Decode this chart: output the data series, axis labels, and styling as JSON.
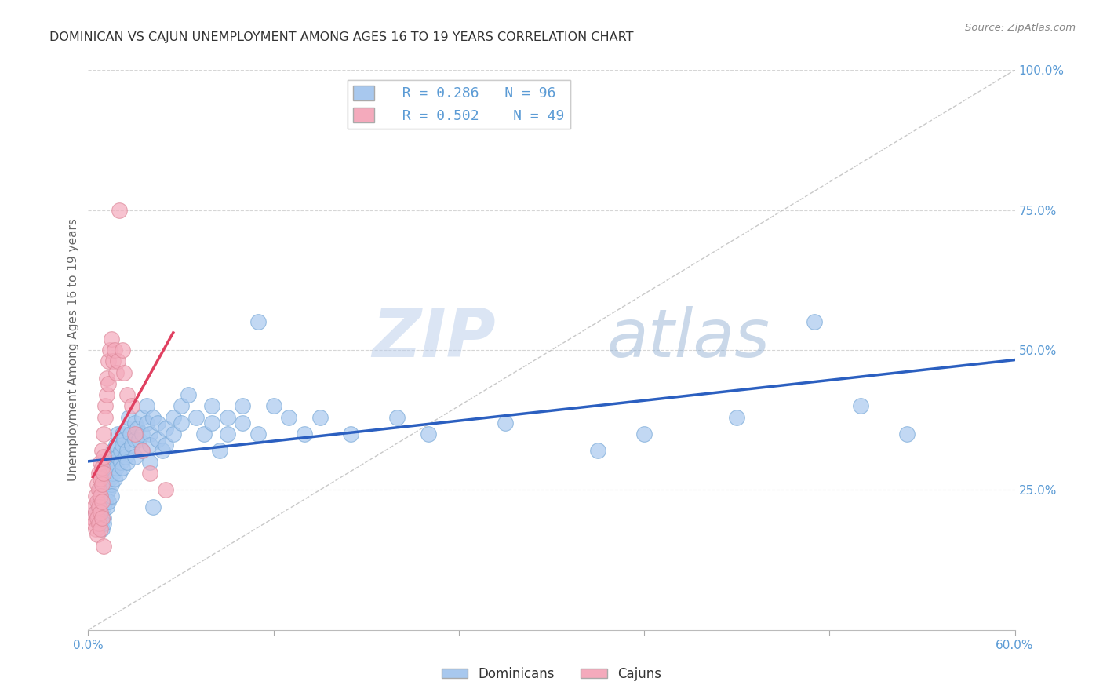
{
  "title": "DOMINICAN VS CAJUN UNEMPLOYMENT AMONG AGES 16 TO 19 YEARS CORRELATION CHART",
  "source": "Source: ZipAtlas.com",
  "ylabel": "Unemployment Among Ages 16 to 19 years",
  "xlim": [
    0.0,
    0.6
  ],
  "ylim": [
    0.0,
    1.0
  ],
  "xticks": [
    0.0,
    0.12,
    0.24,
    0.36,
    0.48,
    0.6
  ],
  "xticklabels": [
    "0.0%",
    "",
    "",
    "",
    "",
    "60.0%"
  ],
  "yticks_right": [
    0.0,
    0.25,
    0.5,
    0.75,
    1.0
  ],
  "yticklabels_right": [
    "",
    "25.0%",
    "50.0%",
    "75.0%",
    "100.0%"
  ],
  "dominican_color": "#A8C8EE",
  "cajun_color": "#F4AABC",
  "dominican_line_color": "#2B5FC0",
  "cajun_line_color": "#E04060",
  "diagonal_color": "#CCCCCC",
  "watermark_zip": "ZIP",
  "watermark_atlas": "atlas",
  "legend_r_dominican": "R = 0.286",
  "legend_n_dominican": "N = 96",
  "legend_r_cajun": "R = 0.502",
  "legend_n_cajun": "N = 49",
  "background_color": "#FFFFFF",
  "grid_color": "#CCCCCC",
  "title_color": "#333333",
  "tick_color": "#5B9BD5",
  "dominican_points": [
    [
      0.005,
      0.21
    ],
    [
      0.007,
      0.23
    ],
    [
      0.007,
      0.19
    ],
    [
      0.008,
      0.22
    ],
    [
      0.008,
      0.25
    ],
    [
      0.009,
      0.2
    ],
    [
      0.009,
      0.18
    ],
    [
      0.01,
      0.24
    ],
    [
      0.01,
      0.22
    ],
    [
      0.01,
      0.2
    ],
    [
      0.01,
      0.19
    ],
    [
      0.011,
      0.27
    ],
    [
      0.011,
      0.23
    ],
    [
      0.012,
      0.26
    ],
    [
      0.012,
      0.24
    ],
    [
      0.012,
      0.22
    ],
    [
      0.013,
      0.28
    ],
    [
      0.013,
      0.25
    ],
    [
      0.013,
      0.23
    ],
    [
      0.014,
      0.3
    ],
    [
      0.014,
      0.27
    ],
    [
      0.015,
      0.29
    ],
    [
      0.015,
      0.26
    ],
    [
      0.015,
      0.24
    ],
    [
      0.016,
      0.32
    ],
    [
      0.016,
      0.28
    ],
    [
      0.017,
      0.3
    ],
    [
      0.017,
      0.27
    ],
    [
      0.018,
      0.33
    ],
    [
      0.018,
      0.29
    ],
    [
      0.019,
      0.35
    ],
    [
      0.019,
      0.31
    ],
    [
      0.02,
      0.28
    ],
    [
      0.021,
      0.32
    ],
    [
      0.021,
      0.3
    ],
    [
      0.022,
      0.35
    ],
    [
      0.022,
      0.33
    ],
    [
      0.022,
      0.29
    ],
    [
      0.023,
      0.34
    ],
    [
      0.024,
      0.31
    ],
    [
      0.025,
      0.36
    ],
    [
      0.025,
      0.32
    ],
    [
      0.025,
      0.3
    ],
    [
      0.026,
      0.38
    ],
    [
      0.027,
      0.35
    ],
    [
      0.028,
      0.33
    ],
    [
      0.03,
      0.37
    ],
    [
      0.03,
      0.34
    ],
    [
      0.03,
      0.31
    ],
    [
      0.032,
      0.36
    ],
    [
      0.033,
      0.34
    ],
    [
      0.035,
      0.38
    ],
    [
      0.035,
      0.35
    ],
    [
      0.035,
      0.32
    ],
    [
      0.038,
      0.4
    ],
    [
      0.038,
      0.37
    ],
    [
      0.04,
      0.35
    ],
    [
      0.04,
      0.33
    ],
    [
      0.04,
      0.3
    ],
    [
      0.042,
      0.38
    ],
    [
      0.042,
      0.22
    ],
    [
      0.045,
      0.37
    ],
    [
      0.045,
      0.34
    ],
    [
      0.048,
      0.32
    ],
    [
      0.05,
      0.36
    ],
    [
      0.05,
      0.33
    ],
    [
      0.055,
      0.38
    ],
    [
      0.055,
      0.35
    ],
    [
      0.06,
      0.4
    ],
    [
      0.06,
      0.37
    ],
    [
      0.065,
      0.42
    ],
    [
      0.07,
      0.38
    ],
    [
      0.075,
      0.35
    ],
    [
      0.08,
      0.4
    ],
    [
      0.08,
      0.37
    ],
    [
      0.085,
      0.32
    ],
    [
      0.09,
      0.38
    ],
    [
      0.09,
      0.35
    ],
    [
      0.1,
      0.4
    ],
    [
      0.1,
      0.37
    ],
    [
      0.11,
      0.35
    ],
    [
      0.11,
      0.55
    ],
    [
      0.12,
      0.4
    ],
    [
      0.13,
      0.38
    ],
    [
      0.14,
      0.35
    ],
    [
      0.15,
      0.38
    ],
    [
      0.17,
      0.35
    ],
    [
      0.2,
      0.38
    ],
    [
      0.22,
      0.35
    ],
    [
      0.27,
      0.37
    ],
    [
      0.33,
      0.32
    ],
    [
      0.36,
      0.35
    ],
    [
      0.42,
      0.38
    ],
    [
      0.47,
      0.55
    ],
    [
      0.5,
      0.4
    ],
    [
      0.53,
      0.35
    ]
  ],
  "cajun_points": [
    [
      0.003,
      0.2
    ],
    [
      0.004,
      0.22
    ],
    [
      0.004,
      0.19
    ],
    [
      0.005,
      0.24
    ],
    [
      0.005,
      0.21
    ],
    [
      0.005,
      0.18
    ],
    [
      0.006,
      0.26
    ],
    [
      0.006,
      0.23
    ],
    [
      0.006,
      0.2
    ],
    [
      0.006,
      0.17
    ],
    [
      0.007,
      0.28
    ],
    [
      0.007,
      0.25
    ],
    [
      0.007,
      0.22
    ],
    [
      0.007,
      0.19
    ],
    [
      0.008,
      0.3
    ],
    [
      0.008,
      0.27
    ],
    [
      0.008,
      0.24
    ],
    [
      0.008,
      0.21
    ],
    [
      0.008,
      0.18
    ],
    [
      0.009,
      0.32
    ],
    [
      0.009,
      0.29
    ],
    [
      0.009,
      0.26
    ],
    [
      0.009,
      0.23
    ],
    [
      0.009,
      0.2
    ],
    [
      0.01,
      0.35
    ],
    [
      0.01,
      0.31
    ],
    [
      0.01,
      0.28
    ],
    [
      0.01,
      0.15
    ],
    [
      0.011,
      0.4
    ],
    [
      0.011,
      0.38
    ],
    [
      0.012,
      0.45
    ],
    [
      0.012,
      0.42
    ],
    [
      0.013,
      0.48
    ],
    [
      0.013,
      0.44
    ],
    [
      0.014,
      0.5
    ],
    [
      0.015,
      0.52
    ],
    [
      0.016,
      0.48
    ],
    [
      0.017,
      0.5
    ],
    [
      0.018,
      0.46
    ],
    [
      0.019,
      0.48
    ],
    [
      0.02,
      0.75
    ],
    [
      0.022,
      0.5
    ],
    [
      0.023,
      0.46
    ],
    [
      0.025,
      0.42
    ],
    [
      0.028,
      0.4
    ],
    [
      0.03,
      0.35
    ],
    [
      0.035,
      0.32
    ],
    [
      0.04,
      0.28
    ],
    [
      0.05,
      0.25
    ]
  ]
}
